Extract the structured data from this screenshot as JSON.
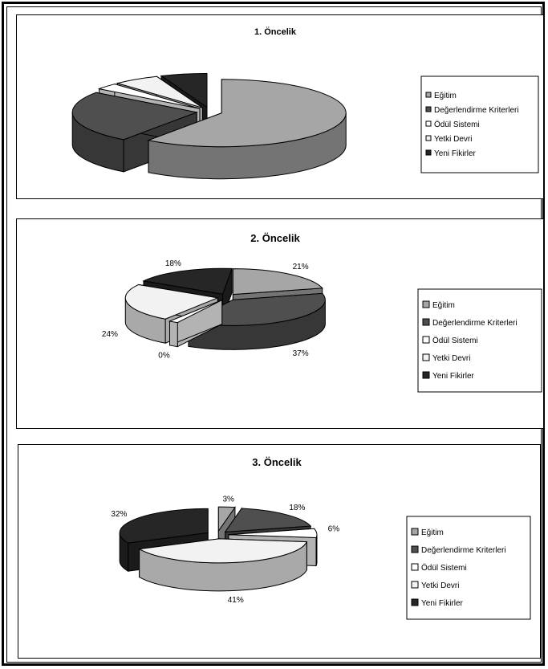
{
  "chart_data": [
    {
      "type": "pie",
      "title": "1. Öncelik",
      "categories": [
        "Eğitim",
        "Değerlendirme Kriterleri",
        "Ödül Sistemi",
        "Yetki Devri",
        "Yeni Fikirler"
      ],
      "values": [
        60,
        25,
        3,
        6,
        6
      ],
      "data_labels": [
        "",
        "",
        "",
        "",
        ""
      ],
      "exploded": true,
      "three_d": true,
      "legend": "right",
      "colors": [
        "#a6a6a6",
        "#4f4f4f",
        "#ffffff",
        "#f2f2f2",
        "#262626"
      ]
    },
    {
      "type": "pie",
      "title": "2. Öncelik",
      "categories": [
        "Eğitim",
        "Değerlendirme Kriterleri",
        "Ödül Sistemi",
        "Yetki Devri",
        "Yeni Fikirler"
      ],
      "values": [
        21,
        37,
        0,
        24,
        18
      ],
      "data_labels": [
        "21%",
        "37%",
        "0%",
        "24%",
        "18%"
      ],
      "exploded": true,
      "three_d": true,
      "legend": "right",
      "colors": [
        "#a6a6a6",
        "#4f4f4f",
        "#ffffff",
        "#f2f2f2",
        "#262626"
      ]
    },
    {
      "type": "pie",
      "title": "3. Öncelik",
      "categories": [
        "Eğitim",
        "Değerlendirme Kriterleri",
        "Ödül Sistemi",
        "Yetki Devri",
        "Yeni Fikirler"
      ],
      "values": [
        3,
        18,
        6,
        41,
        32
      ],
      "data_labels": [
        "3%",
        "18%",
        "6%",
        "41%",
        "32%"
      ],
      "exploded": true,
      "three_d": true,
      "legend": "right",
      "colors": [
        "#a6a6a6",
        "#4f4f4f",
        "#ffffff",
        "#f2f2f2",
        "#262626"
      ]
    }
  ]
}
